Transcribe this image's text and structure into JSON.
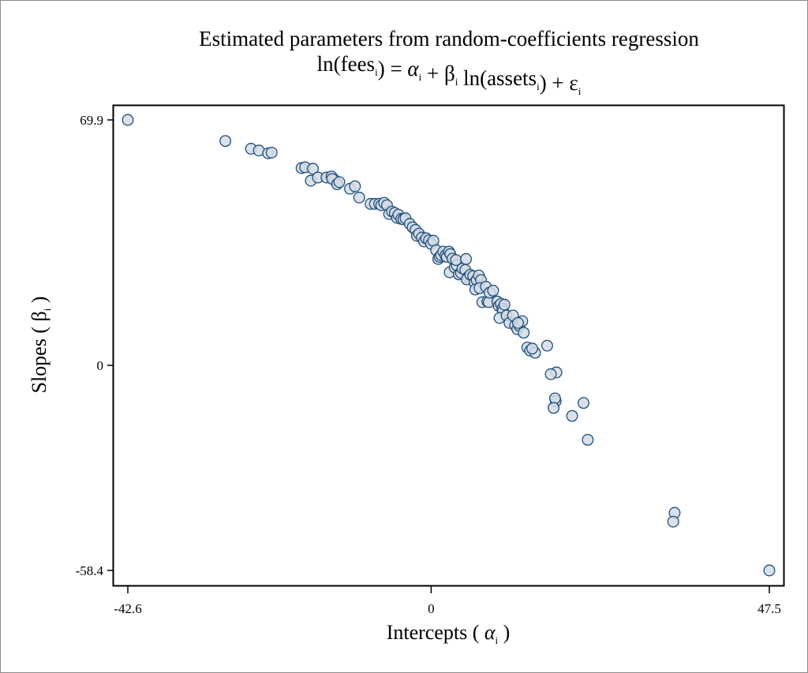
{
  "chart_data": {
    "type": "scatter",
    "title": "Estimated parameters from random-coefficients regression",
    "subtitle": {
      "parts": [
        {
          "text": "ln(fees",
          "sub": "i"
        },
        {
          "text": ") = ",
          "sub": null
        },
        {
          "text": "α",
          "sub": "i",
          "italic": true
        },
        {
          "text": " + β",
          "sub": "i"
        },
        {
          "text": " ln(assets",
          "sub": "i"
        },
        {
          "text": ") + ε",
          "sub": "i"
        }
      ],
      "text": "ln(fees_i) = α_i + β_i ln(assets_i) + ε_i"
    },
    "xlabel": {
      "prefix": "Intercepts ( ",
      "symbol": "α",
      "sub": "i",
      "suffix": " )"
    },
    "ylabel": {
      "prefix": "Slopes ( ",
      "symbol": "β",
      "sub": "i",
      "suffix": " )"
    },
    "xlim": [
      -42.6,
      47.5
    ],
    "ylim": [
      -58.4,
      69.9
    ],
    "xticks": [
      {
        "value": -42.6,
        "label": "-42.6"
      },
      {
        "value": 0,
        "label": "0"
      },
      {
        "value": 47.5,
        "label": "47.5"
      }
    ],
    "yticks": [
      {
        "value": 69.9,
        "label": "69.9"
      },
      {
        "value": 0,
        "label": "0"
      },
      {
        "value": -58.4,
        "label": "-58.4"
      }
    ],
    "grid": false,
    "legend": "none",
    "marker": {
      "shape": "circle",
      "fill": "#d4dce6",
      "stroke": "#1f4e79"
    },
    "points": [
      [
        -42.6,
        69.9
      ],
      [
        -28.9,
        63.9
      ],
      [
        -25.3,
        61.7
      ],
      [
        -24.2,
        61.2
      ],
      [
        -22.9,
        60.4
      ],
      [
        -22.4,
        60.6
      ],
      [
        -18.2,
        56.2
      ],
      [
        -17.7,
        56.4
      ],
      [
        -16.9,
        52.6
      ],
      [
        -16.6,
        56.0
      ],
      [
        -15.9,
        53.5
      ],
      [
        -14.7,
        53.5
      ],
      [
        -14.0,
        53.8
      ],
      [
        -13.6,
        52.9
      ],
      [
        -13.9,
        53.1
      ],
      [
        -13.2,
        51.6
      ],
      [
        -12.9,
        52.2
      ],
      [
        -11.4,
        50.3
      ],
      [
        -10.7,
        51.0
      ],
      [
        -10.1,
        47.8
      ],
      [
        -8.5,
        46.0
      ],
      [
        -7.9,
        46.0
      ],
      [
        -7.3,
        46.0
      ],
      [
        -7.0,
        45.6
      ],
      [
        -6.6,
        46.3
      ],
      [
        -6.2,
        45.6
      ],
      [
        -5.9,
        43.1
      ],
      [
        -5.5,
        43.8
      ],
      [
        -5.1,
        43.4
      ],
      [
        -4.8,
        42.0
      ],
      [
        -4.6,
        42.9
      ],
      [
        -4.2,
        41.7
      ],
      [
        -3.9,
        41.6
      ],
      [
        -3.6,
        41.9
      ],
      [
        -3.0,
        40.3
      ],
      [
        -2.6,
        39.3
      ],
      [
        -2.2,
        38.6
      ],
      [
        -2.0,
        36.9
      ],
      [
        -1.7,
        37.5
      ],
      [
        -1.3,
        36.4
      ],
      [
        -1.0,
        35.3
      ],
      [
        -0.7,
        36.2
      ],
      [
        -0.3,
        35.6
      ],
      [
        0.0,
        34.6
      ],
      [
        0.3,
        35.5
      ],
      [
        0.7,
        32.8
      ],
      [
        1.0,
        30.3
      ],
      [
        1.2,
        30.9
      ],
      [
        1.4,
        31.4
      ],
      [
        1.7,
        32.4
      ],
      [
        2.0,
        31.3
      ],
      [
        2.2,
        30.9
      ],
      [
        2.5,
        32.4
      ],
      [
        2.7,
        31.7
      ],
      [
        3.0,
        30.4
      ],
      [
        2.6,
        26.5
      ],
      [
        3.3,
        27.9
      ],
      [
        3.6,
        28.5
      ],
      [
        3.9,
        25.9
      ],
      [
        4.2,
        26.3
      ],
      [
        4.4,
        27.6
      ],
      [
        4.8,
        27.2
      ],
      [
        3.5,
        30.0
      ],
      [
        4.9,
        30.3
      ],
      [
        5.2,
        25.2
      ],
      [
        5.0,
        24.5
      ],
      [
        5.5,
        25.8
      ],
      [
        5.9,
        25.4
      ],
      [
        6.1,
        23.6
      ],
      [
        6.4,
        24.3
      ],
      [
        6.7,
        25.6
      ],
      [
        7.0,
        24.3
      ],
      [
        6.2,
        21.6
      ],
      [
        6.8,
        22.0
      ],
      [
        7.2,
        18.0
      ],
      [
        7.9,
        18.2
      ],
      [
        8.1,
        18.0
      ],
      [
        7.7,
        22.4
      ],
      [
        8.2,
        20.7
      ],
      [
        8.7,
        21.3
      ],
      [
        9.3,
        18.2
      ],
      [
        9.5,
        16.9
      ],
      [
        9.8,
        17.5
      ],
      [
        10.0,
        16.2
      ],
      [
        10.1,
        15.5
      ],
      [
        10.3,
        17.3
      ],
      [
        9.6,
        13.5
      ],
      [
        10.6,
        14.2
      ],
      [
        11.0,
        12.1
      ],
      [
        11.5,
        14.2
      ],
      [
        11.8,
        11.4
      ],
      [
        12.1,
        10.3
      ],
      [
        12.4,
        11.3
      ],
      [
        12.8,
        12.6
      ],
      [
        12.2,
        12.1
      ],
      [
        13.0,
        9.3
      ],
      [
        13.5,
        5.1
      ],
      [
        13.9,
        4.2
      ],
      [
        14.6,
        3.6
      ],
      [
        14.2,
        4.8
      ],
      [
        16.3,
        5.6
      ],
      [
        17.6,
        -2.0
      ],
      [
        16.8,
        -2.5
      ],
      [
        17.5,
        -10.2
      ],
      [
        17.4,
        -9.4
      ],
      [
        17.2,
        -12.1
      ],
      [
        19.8,
        -14.4
      ],
      [
        21.4,
        -10.7
      ],
      [
        22.0,
        -21.2
      ],
      [
        34.2,
        -42.0
      ],
      [
        34.0,
        -44.5
      ],
      [
        47.5,
        -58.4
      ]
    ]
  }
}
